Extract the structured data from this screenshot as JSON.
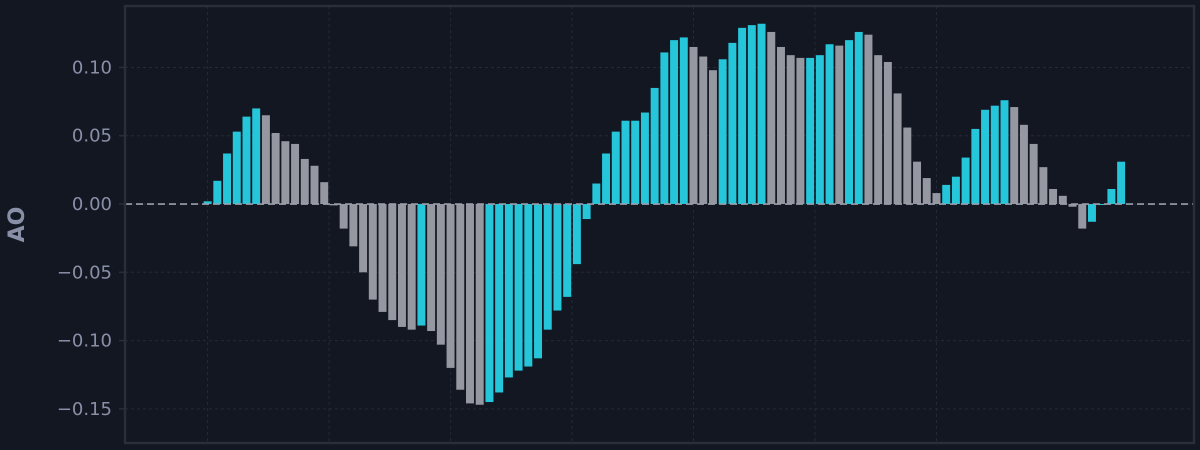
{
  "chart_data": {
    "type": "bar",
    "title": "",
    "xlabel": "",
    "ylabel": "AO",
    "ylim": [
      -0.175,
      0.145
    ],
    "xlim": [
      -8.5,
      101.5
    ],
    "x_tick_labels": false,
    "yticks": [
      0.1,
      0.05,
      0.0,
      -0.05,
      -0.1,
      -0.15
    ],
    "ytick_labels": [
      "0.10",
      "0.05",
      "0.00",
      "−0.05",
      "−0.10",
      "−0.15"
    ],
    "grid": true,
    "zero_line": true,
    "legend": "none",
    "colors": {
      "background": "#131722",
      "axis": "#2a2e39",
      "grid": "#242a38",
      "zero_line": "#9aa0ac",
      "rising": "#26c6da",
      "falling": "#9598a1",
      "text": "#8a8fa8"
    },
    "values": [
      0.002,
      0.017,
      0.037,
      0.053,
      0.064,
      0.07,
      0.065,
      0.052,
      0.046,
      0.044,
      0.033,
      0.028,
      0.016,
      -0.001,
      -0.018,
      -0.031,
      -0.05,
      -0.07,
      -0.079,
      -0.085,
      -0.09,
      -0.092,
      -0.089,
      -0.093,
      -0.103,
      -0.12,
      -0.136,
      -0.146,
      -0.147,
      -0.145,
      -0.138,
      -0.127,
      -0.122,
      -0.119,
      -0.113,
      -0.092,
      -0.078,
      -0.068,
      -0.044,
      -0.011,
      0.015,
      0.037,
      0.053,
      0.061,
      0.061,
      0.067,
      0.085,
      0.111,
      0.12,
      0.122,
      0.115,
      0.108,
      0.098,
      0.106,
      0.118,
      0.129,
      0.131,
      0.132,
      0.126,
      0.115,
      0.109,
      0.107,
      0.107,
      0.109,
      0.117,
      0.116,
      0.12,
      0.126,
      0.124,
      0.109,
      0.104,
      0.081,
      0.056,
      0.031,
      0.019,
      0.008,
      0.014,
      0.02,
      0.034,
      0.055,
      0.069,
      0.072,
      0.076,
      0.071,
      0.058,
      0.044,
      0.027,
      0.011,
      0.006,
      -0.002,
      -0.018,
      -0.013,
      0.0,
      0.011,
      0.031
    ]
  }
}
